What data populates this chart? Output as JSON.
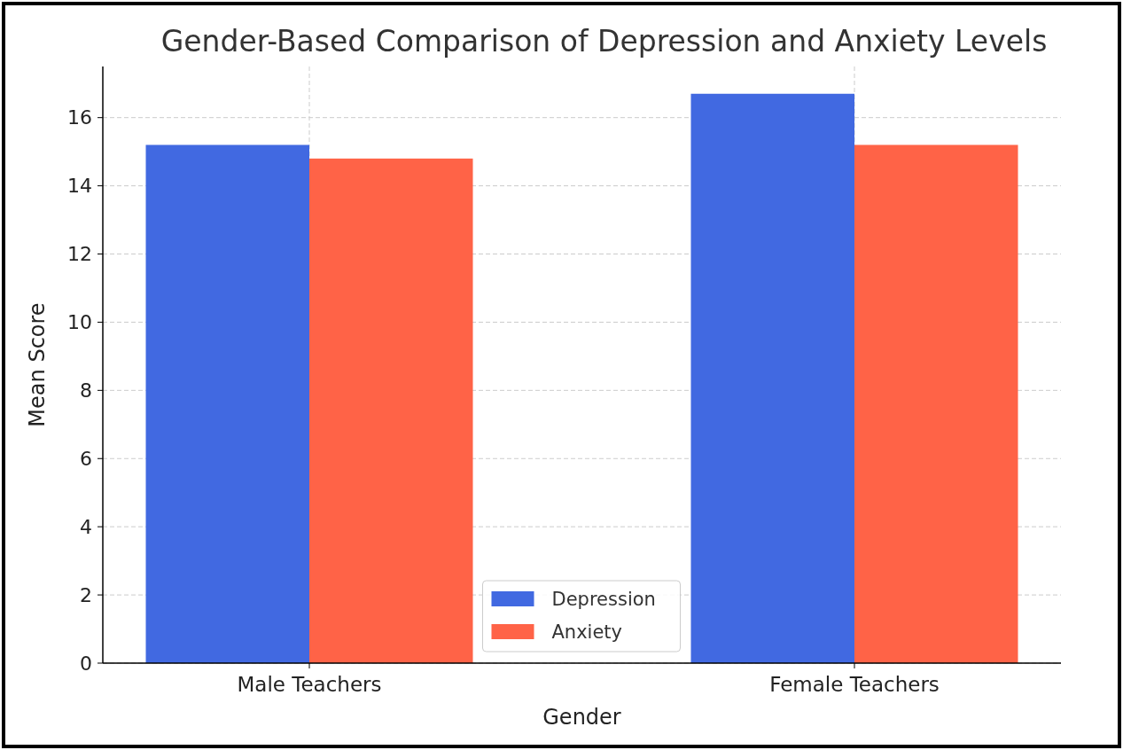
{
  "chart_data": {
    "type": "bar",
    "title": "Gender-Based Comparison of Depression and Anxiety Levels",
    "xlabel": "Gender",
    "ylabel": "Mean Score",
    "categories": [
      "Male Teachers",
      "Female Teachers"
    ],
    "series": [
      {
        "name": "Depression",
        "color": "#4169e1",
        "values": [
          15.2,
          16.7
        ]
      },
      {
        "name": "Anxiety",
        "color": "#ff6347",
        "values": [
          14.8,
          15.2
        ]
      }
    ],
    "ylim": [
      0,
      17.5
    ],
    "yticks": [
      0,
      2,
      4,
      6,
      8,
      10,
      12,
      14,
      16
    ],
    "grid": true,
    "legend": "bottom"
  }
}
